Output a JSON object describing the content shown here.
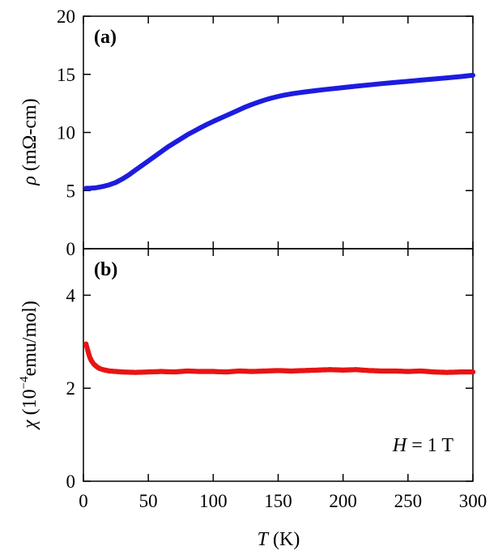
{
  "chart_data": [
    {
      "panel_label": "(a)",
      "type": "line",
      "ylabel_symbol": "ρ",
      "ylabel_unit": " (mΩ-cm)",
      "xlim": [
        0,
        300
      ],
      "ylim": [
        0,
        20
      ],
      "yticks": [
        0,
        5,
        10,
        15,
        20
      ],
      "color": "#1c1ce0",
      "series": [
        {
          "name": "rho",
          "x": [
            2,
            5,
            10,
            15,
            20,
            25,
            30,
            35,
            40,
            45,
            50,
            55,
            60,
            65,
            70,
            75,
            80,
            85,
            90,
            95,
            100,
            105,
            110,
            115,
            120,
            125,
            130,
            135,
            140,
            145,
            150,
            155,
            160,
            165,
            170,
            175,
            180,
            185,
            190,
            195,
            200,
            210,
            220,
            230,
            240,
            250,
            260,
            270,
            280,
            290,
            300
          ],
          "y": [
            5.2,
            5.2,
            5.25,
            5.35,
            5.5,
            5.7,
            6.0,
            6.35,
            6.75,
            7.15,
            7.55,
            7.95,
            8.35,
            8.75,
            9.1,
            9.45,
            9.8,
            10.1,
            10.4,
            10.68,
            10.95,
            11.2,
            11.45,
            11.7,
            11.95,
            12.2,
            12.42,
            12.62,
            12.8,
            12.96,
            13.1,
            13.22,
            13.32,
            13.4,
            13.48,
            13.55,
            13.62,
            13.68,
            13.74,
            13.8,
            13.86,
            13.98,
            14.09,
            14.2,
            14.3,
            14.4,
            14.5,
            14.6,
            14.7,
            14.8,
            14.92
          ]
        }
      ]
    },
    {
      "panel_label": "(b)",
      "type": "scatter",
      "ylabel_symbol": "χ",
      "ylabel_pre": " (10",
      "ylabel_exp": "−4",
      "ylabel_post": "emu/mol)",
      "xlabel_symbol": "T",
      "xlabel_unit": " (K)",
      "xticks": [
        0,
        50,
        100,
        150,
        200,
        250,
        300
      ],
      "xlim": [
        0,
        300
      ],
      "ylim": [
        0,
        5
      ],
      "yticks": [
        0,
        2,
        4
      ],
      "color": "#e81414",
      "annotation_symbol": "H",
      "annotation_rest": " = 1 T",
      "series": [
        {
          "name": "chi",
          "x": [
            2,
            3,
            4,
            5,
            6,
            8,
            10,
            12,
            15,
            20,
            25,
            30,
            40,
            50,
            60,
            70,
            80,
            90,
            100,
            110,
            120,
            130,
            140,
            150,
            160,
            170,
            180,
            190,
            200,
            210,
            220,
            230,
            240,
            250,
            260,
            270,
            280,
            290,
            300
          ],
          "y": [
            2.95,
            2.85,
            2.75,
            2.66,
            2.6,
            2.52,
            2.47,
            2.43,
            2.4,
            2.37,
            2.36,
            2.35,
            2.34,
            2.35,
            2.36,
            2.35,
            2.37,
            2.36,
            2.36,
            2.35,
            2.37,
            2.36,
            2.37,
            2.38,
            2.37,
            2.38,
            2.39,
            2.4,
            2.39,
            2.4,
            2.38,
            2.37,
            2.37,
            2.36,
            2.37,
            2.35,
            2.34,
            2.35,
            2.35
          ]
        }
      ]
    }
  ]
}
